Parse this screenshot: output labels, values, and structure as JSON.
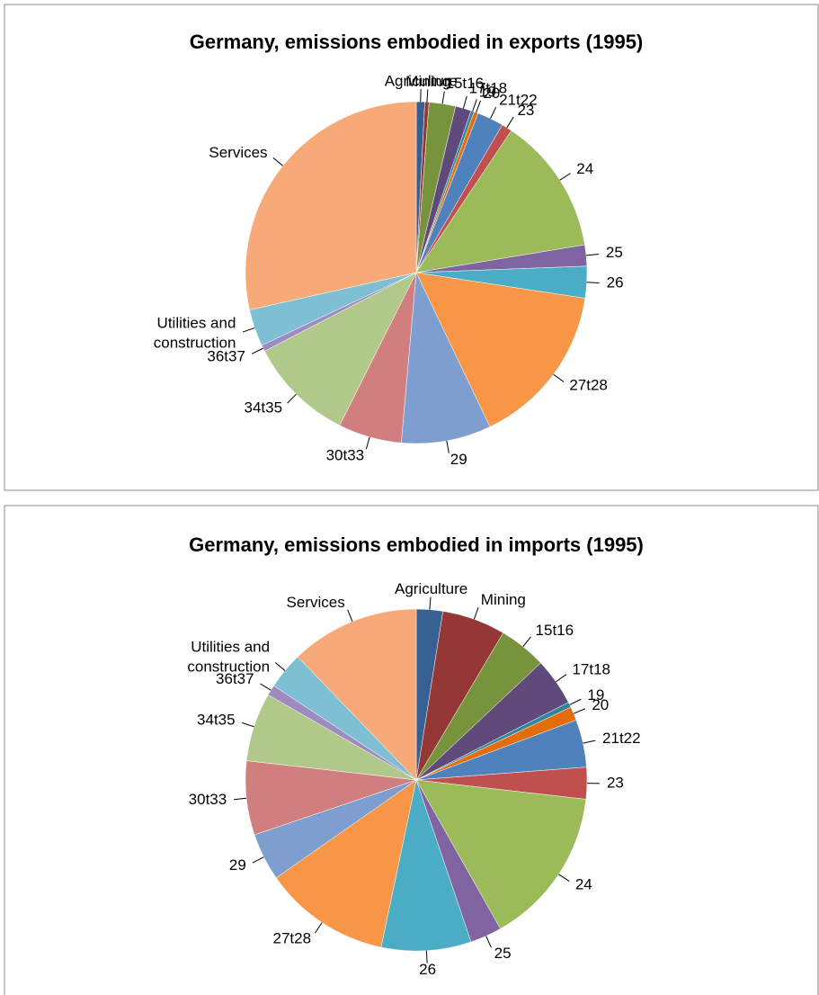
{
  "chart_data": [
    {
      "type": "pie",
      "title": "Germany, emissions embodied in exports (1995)",
      "categories": [
        "Agriculture",
        "Mining",
        "15t16",
        "17t18",
        "19",
        "20",
        "21t22",
        "23",
        "24",
        "25",
        "26",
        "27t28",
        "29",
        "30t33",
        "34t35",
        "36t37",
        "Utilities and construction",
        "Services"
      ],
      "values": [
        0.8,
        0.4,
        2.5,
        1.5,
        0.3,
        0.4,
        2.5,
        1,
        13,
        2,
        3,
        15.5,
        8.5,
        6,
        10,
        0.6,
        3.5,
        28.5
      ],
      "colors": [
        "#366092",
        "#953735",
        "#77933c",
        "#604a7b",
        "#31859c",
        "#e46c0a",
        "#4f81bd",
        "#c0504d",
        "#9bbb59",
        "#8064a2",
        "#4bacc6",
        "#f79646",
        "#7f9ed0",
        "#d07f7e",
        "#b0c88a",
        "#9f8bbf",
        "#7ebfd4",
        "#f7aa78"
      ]
    },
    {
      "type": "pie",
      "title": "Germany, emissions embodied in imports (1995)",
      "categories": [
        "Agriculture",
        "Mining",
        "15t16",
        "17t18",
        "19",
        "20",
        "21t22",
        "23",
        "24",
        "25",
        "26",
        "27t28",
        "29",
        "30t33",
        "34t35",
        "36t37",
        "Utilities and construction",
        "Services"
      ],
      "values": [
        2.5,
        6,
        4.5,
        4.5,
        0.5,
        1.3,
        4.5,
        3,
        15,
        3,
        8.5,
        12,
        4.5,
        7,
        6.5,
        1,
        3.5,
        12.2
      ],
      "colors": [
        "#366092",
        "#953735",
        "#77933c",
        "#604a7b",
        "#31859c",
        "#e46c0a",
        "#4f81bd",
        "#c0504d",
        "#9bbb59",
        "#8064a2",
        "#4bacc6",
        "#f79646",
        "#7f9ed0",
        "#d07f7e",
        "#b0c88a",
        "#9f8bbf",
        "#7ebfd4",
        "#f7aa78"
      ]
    }
  ]
}
